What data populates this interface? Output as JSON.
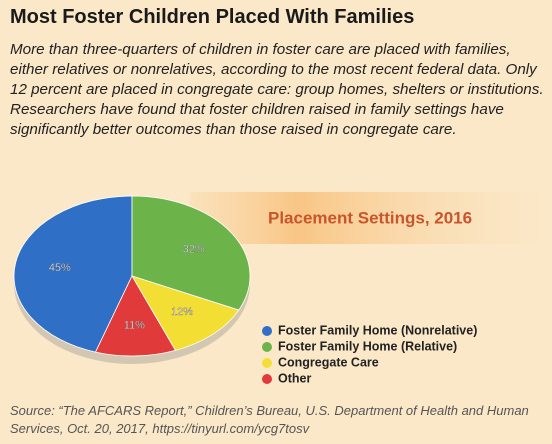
{
  "chart_data": {
    "type": "pie",
    "title": "Most Foster Children Placed With Families",
    "subtitle": "More than three-quarters of children in foster care are placed with families, either relatives or nonrelatives, according to the most recent federal data. Only 12 percent are placed in congregate care: group homes, shelters or institutions. Researchers have found that foster children raised in family settings have significantly better outcomes than those raised in congregate care.",
    "chart_title": "Placement Settings, 2016",
    "categories": [
      "Foster Family Home (Nonrelative)",
      "Foster Family Home (Relative)",
      "Congregate Care",
      "Other"
    ],
    "values": [
      45,
      32,
      12,
      11
    ],
    "value_labels": [
      "45%",
      "32%",
      "12%",
      "11%"
    ],
    "colors": [
      "#2f6fc6",
      "#6cb44a",
      "#f3df33",
      "#e03a3a"
    ],
    "source": "Source: “The AFCARS Report,” Children’s Bureau, U.S. Department of Health and Human Services, Oct. 20, 2017, https://tinyurl.com/ycg7tosv"
  }
}
